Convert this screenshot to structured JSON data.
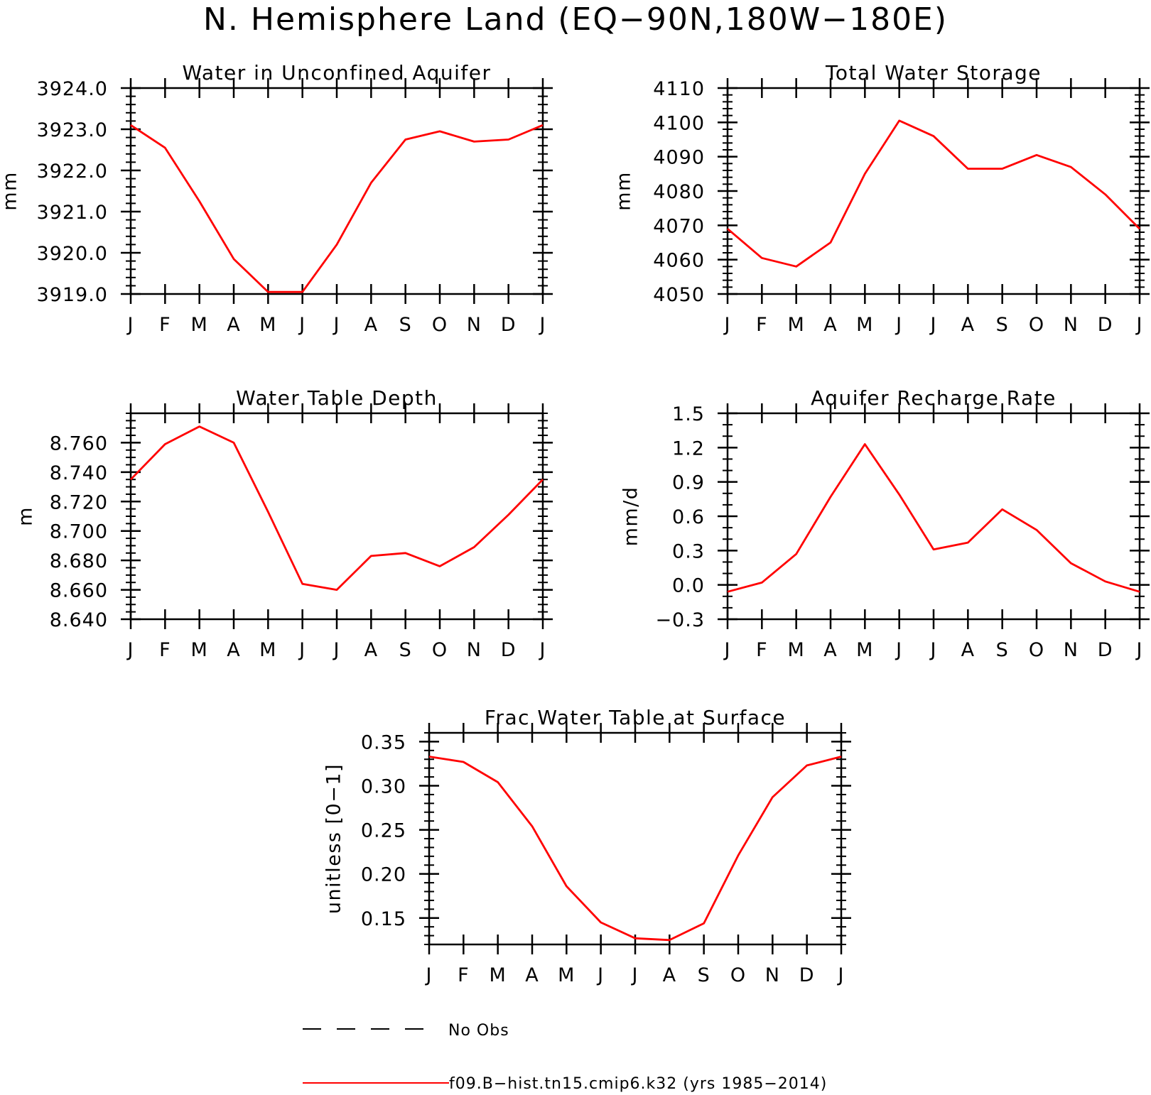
{
  "title": "N. Hemisphere Land (EQ−90N,180W−180E)",
  "colors": {
    "model_line": "#ff0000",
    "obs_line": "#000000",
    "frame": "#000000"
  },
  "legend": {
    "obs_label": "No Obs",
    "model_label": "f09.B−hist.tn15.cmip6.k32 (yrs 1985−2014)"
  },
  "chart_data": [
    {
      "type": "line",
      "title": "Water in Unconfined Aquifer",
      "ylabel": "mm",
      "categories": [
        "J",
        "F",
        "M",
        "A",
        "M",
        "J",
        "J",
        "A",
        "S",
        "O",
        "N",
        "D",
        "J"
      ],
      "ylim": [
        3919.0,
        3924.0
      ],
      "yticks": [
        3919.0,
        3920.0,
        3921.0,
        3922.0,
        3923.0,
        3924.0
      ],
      "ytick_labels": [
        "3919.0",
        "3920.0",
        "3921.0",
        "3922.0",
        "3923.0",
        "3924.0"
      ],
      "yminor": 5,
      "series": [
        {
          "values": [
            3923.1,
            3922.55,
            3921.25,
            3919.85,
            3919.05,
            3919.05,
            3920.2,
            3921.7,
            3922.75,
            3922.95,
            3922.7,
            3922.75,
            3923.1
          ]
        }
      ]
    },
    {
      "type": "line",
      "title": "Total Water Storage",
      "ylabel": "mm",
      "categories": [
        "J",
        "F",
        "M",
        "A",
        "M",
        "J",
        "J",
        "A",
        "S",
        "O",
        "N",
        "D",
        "J"
      ],
      "ylim": [
        4050,
        4110
      ],
      "yticks": [
        4050,
        4060,
        4070,
        4080,
        4090,
        4100,
        4110
      ],
      "ytick_labels": [
        "4050",
        "4060",
        "4070",
        "4080",
        "4090",
        "4100",
        "4110"
      ],
      "yminor": 5,
      "series": [
        {
          "values": [
            4069,
            4060.5,
            4058,
            4065,
            4085,
            4100.5,
            4096,
            4086.5,
            4086.5,
            4090.5,
            4087,
            4079,
            4069
          ]
        }
      ]
    },
    {
      "type": "line",
      "title": "Water Table Depth",
      "ylabel": "m",
      "categories": [
        "J",
        "F",
        "M",
        "A",
        "M",
        "J",
        "J",
        "A",
        "S",
        "O",
        "N",
        "D",
        "J"
      ],
      "ylim": [
        8.64,
        8.78
      ],
      "yticks": [
        8.64,
        8.66,
        8.68,
        8.7,
        8.72,
        8.74,
        8.76
      ],
      "ytick_labels": [
        "8.640",
        "8.660",
        "8.680",
        "8.700",
        "8.720",
        "8.740",
        "8.760"
      ],
      "yminor": 4,
      "series": [
        {
          "values": [
            8.735,
            8.759,
            8.771,
            8.76,
            8.713,
            8.664,
            8.66,
            8.683,
            8.685,
            8.676,
            8.689,
            8.711,
            8.735
          ]
        }
      ]
    },
    {
      "type": "line",
      "title": "Aquifer Recharge Rate",
      "ylabel": "mm/d",
      "categories": [
        "J",
        "F",
        "M",
        "A",
        "M",
        "J",
        "J",
        "A",
        "S",
        "O",
        "N",
        "D",
        "J"
      ],
      "ylim": [
        -0.3,
        1.5
      ],
      "yticks": [
        -0.3,
        0.0,
        0.3,
        0.6,
        0.9,
        1.2,
        1.5
      ],
      "ytick_labels": [
        "−0.3",
        "0.0",
        "0.3",
        "0.6",
        "0.9",
        "1.2",
        "1.5"
      ],
      "yminor": 3,
      "series": [
        {
          "values": [
            -0.06,
            0.02,
            0.27,
            0.77,
            1.23,
            0.79,
            0.31,
            0.37,
            0.66,
            0.48,
            0.19,
            0.03,
            -0.06
          ]
        }
      ]
    },
    {
      "type": "line",
      "title": "Frac Water Table at Surface",
      "ylabel": "unitless [0−1]",
      "categories": [
        "J",
        "F",
        "M",
        "A",
        "M",
        "J",
        "J",
        "A",
        "S",
        "O",
        "N",
        "D",
        "J"
      ],
      "ylim": [
        0.12,
        0.36
      ],
      "yticks": [
        0.15,
        0.2,
        0.25,
        0.3,
        0.35
      ],
      "ytick_labels": [
        "0.15",
        "0.20",
        "0.25",
        "0.30",
        "0.35"
      ],
      "yminor": 5,
      "series": [
        {
          "values": [
            0.333,
            0.327,
            0.304,
            0.254,
            0.186,
            0.145,
            0.127,
            0.125,
            0.144,
            0.221,
            0.287,
            0.323,
            0.333
          ]
        }
      ]
    }
  ]
}
